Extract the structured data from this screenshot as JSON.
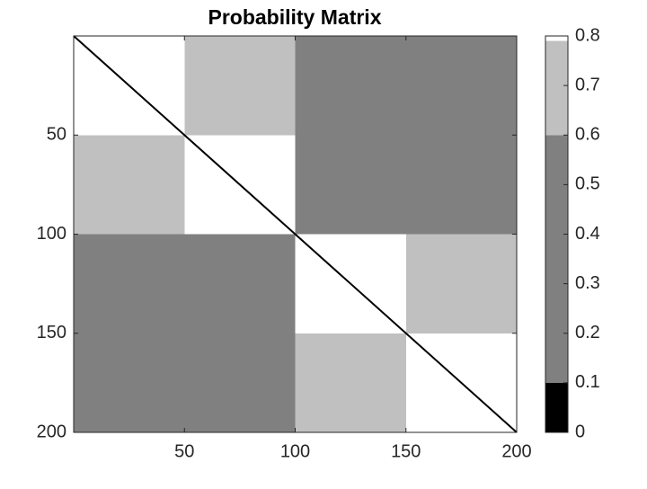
{
  "chart_data": {
    "type": "heatmap",
    "title": "Probability Matrix",
    "xlim": [
      0,
      200
    ],
    "ylim": [
      0,
      200
    ],
    "y_reversed": true,
    "xticks": [
      50,
      100,
      150,
      200
    ],
    "yticks": [
      50,
      100,
      150,
      200
    ],
    "blocks": [
      {
        "x": [
          0,
          50
        ],
        "y": [
          0,
          50
        ],
        "value": 0.8
      },
      {
        "x": [
          50,
          100
        ],
        "y": [
          0,
          50
        ],
        "value": 0.7
      },
      {
        "x": [
          100,
          150
        ],
        "y": [
          0,
          50
        ],
        "value": 0.3
      },
      {
        "x": [
          150,
          200
        ],
        "y": [
          0,
          50
        ],
        "value": 0.3
      },
      {
        "x": [
          0,
          50
        ],
        "y": [
          50,
          100
        ],
        "value": 0.7
      },
      {
        "x": [
          50,
          100
        ],
        "y": [
          50,
          100
        ],
        "value": 0.8
      },
      {
        "x": [
          100,
          150
        ],
        "y": [
          50,
          100
        ],
        "value": 0.3
      },
      {
        "x": [
          150,
          200
        ],
        "y": [
          50,
          100
        ],
        "value": 0.3
      },
      {
        "x": [
          0,
          50
        ],
        "y": [
          100,
          150
        ],
        "value": 0.3
      },
      {
        "x": [
          50,
          100
        ],
        "y": [
          100,
          150
        ],
        "value": 0.3
      },
      {
        "x": [
          100,
          150
        ],
        "y": [
          100,
          150
        ],
        "value": 0.8
      },
      {
        "x": [
          150,
          200
        ],
        "y": [
          100,
          150
        ],
        "value": 0.7
      },
      {
        "x": [
          0,
          50
        ],
        "y": [
          150,
          200
        ],
        "value": 0.3
      },
      {
        "x": [
          50,
          100
        ],
        "y": [
          150,
          200
        ],
        "value": 0.3
      },
      {
        "x": [
          100,
          150
        ],
        "y": [
          150,
          200
        ],
        "value": 0.7
      },
      {
        "x": [
          150,
          200
        ],
        "y": [
          150,
          200
        ],
        "value": 0.8
      }
    ],
    "diagonal_value": 0,
    "colorbar": {
      "clim": [
        0,
        0.8
      ],
      "ticks": [
        0,
        0.1,
        0.2,
        0.3,
        0.4,
        0.5,
        0.6,
        0.7,
        0.8
      ],
      "bands": [
        {
          "range": [
            0,
            0.1
          ],
          "color": "#000000"
        },
        {
          "range": [
            0.1,
            0.6
          ],
          "color": "#808080"
        },
        {
          "range": [
            0.6,
            0.79
          ],
          "color": "#c0c0c0"
        },
        {
          "range": [
            0.79,
            0.8
          ],
          "color": "#ffffff"
        }
      ]
    }
  }
}
